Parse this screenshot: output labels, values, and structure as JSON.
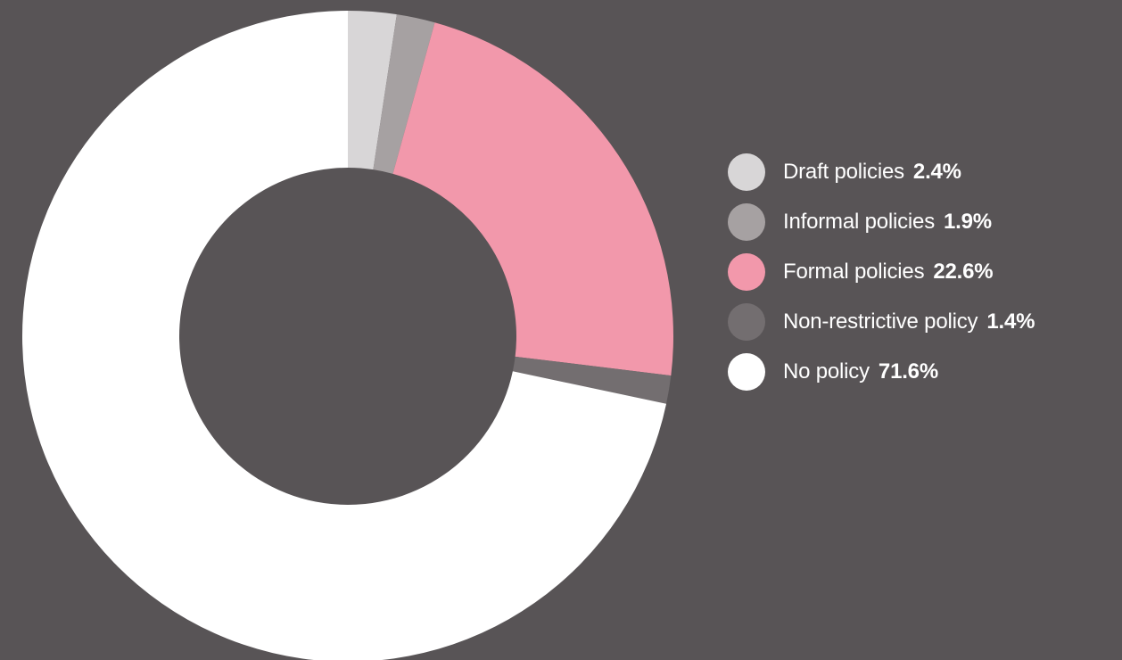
{
  "chart_data": {
    "type": "pie",
    "style": "donut",
    "title": "",
    "legend_placement": "right",
    "background_color": "#585456",
    "slices": [
      {
        "label": "Draft policies",
        "value": 2.4,
        "value_label": "2.4%",
        "color": "#d8d6d7"
      },
      {
        "label": "Informal policies",
        "value": 1.9,
        "value_label": "1.9%",
        "color": "#a6a1a2"
      },
      {
        "label": "Formal policies",
        "value": 22.6,
        "value_label": "22.6%",
        "color": "#f298ab"
      },
      {
        "label": "Non-restrictive policy",
        "value": 1.4,
        "value_label": "1.4%",
        "color": "#736e70"
      },
      {
        "label": "No policy",
        "value": 71.6,
        "value_label": "71.6%",
        "color": "#ffffff"
      }
    ]
  }
}
